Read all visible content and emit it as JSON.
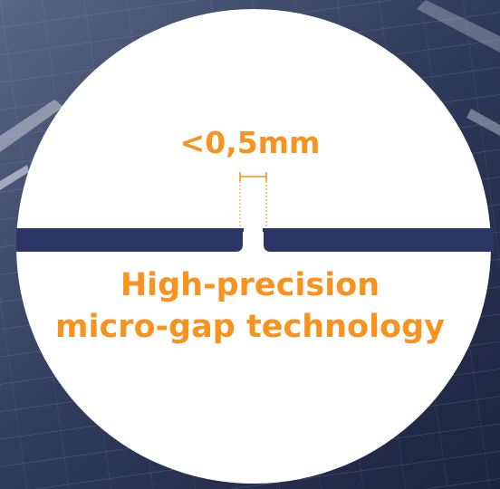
{
  "measurement_label": "<0,5mm",
  "headline": {
    "line1": "High-precision",
    "line2": "micro-gap technology"
  },
  "colors": {
    "accent_orange": "#F7931E",
    "bar_navy": "#2B3566",
    "circle_white": "#FFFFFF",
    "panel_dark": "#1C2742",
    "panel_mid": "#3C4A6B",
    "panel_light": "#7F8BA6"
  }
}
